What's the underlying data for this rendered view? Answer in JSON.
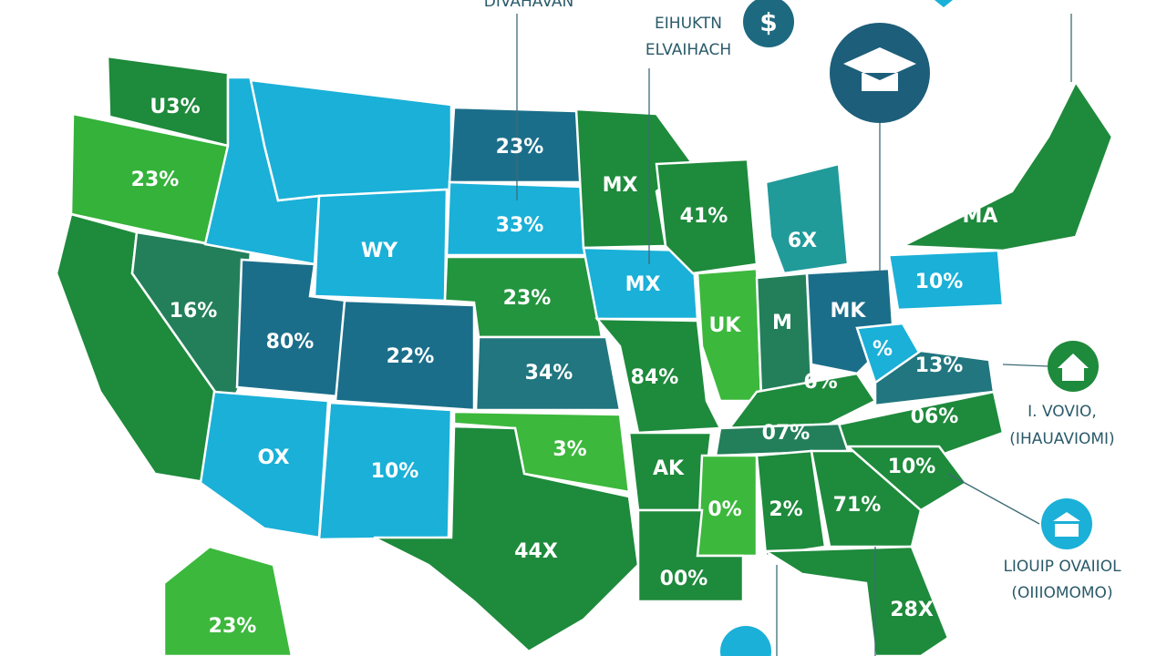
{
  "states": [
    {
      "label": "U3%"
    },
    {
      "label": "23%"
    },
    {
      "label": "16%"
    },
    {
      "label": "23%"
    },
    {
      "label": "33%"
    },
    {
      "label": "WY"
    },
    {
      "label": "MX"
    },
    {
      "label": "41%"
    },
    {
      "label": "6X"
    },
    {
      "label": "23%"
    },
    {
      "label": "MX"
    },
    {
      "label": "UK"
    },
    {
      "label": "M"
    },
    {
      "label": "MK"
    },
    {
      "label": "10%"
    },
    {
      "label": "MA"
    },
    {
      "label": "80%"
    },
    {
      "label": "22%"
    },
    {
      "label": "34%"
    },
    {
      "label": "84%"
    },
    {
      "label": "6%"
    },
    {
      "label": "%"
    },
    {
      "label": "13%"
    },
    {
      "label": "06%"
    },
    {
      "label": "07%"
    },
    {
      "label": "OX"
    },
    {
      "label": "10%"
    },
    {
      "label": "3%"
    },
    {
      "label": "AK"
    },
    {
      "label": "0%"
    },
    {
      "label": "2%"
    },
    {
      "label": "71%"
    },
    {
      "label": "10%"
    },
    {
      "label": "44X"
    },
    {
      "label": "00%"
    },
    {
      "label": "28X"
    },
    {
      "label": "23%"
    }
  ],
  "callouts": [
    {
      "lines": [
        "DIVAHAVAN"
      ]
    },
    {
      "lines": [
        "EIHUKTN",
        "ELVAIHACH"
      ]
    },
    {
      "lines": [
        "I. VOVIO,",
        "(IHAUAVIOMI)"
      ]
    },
    {
      "lines": [
        "LIOUIP OVAIIOL",
        "(OIIIOMOMO)"
      ]
    }
  ]
}
